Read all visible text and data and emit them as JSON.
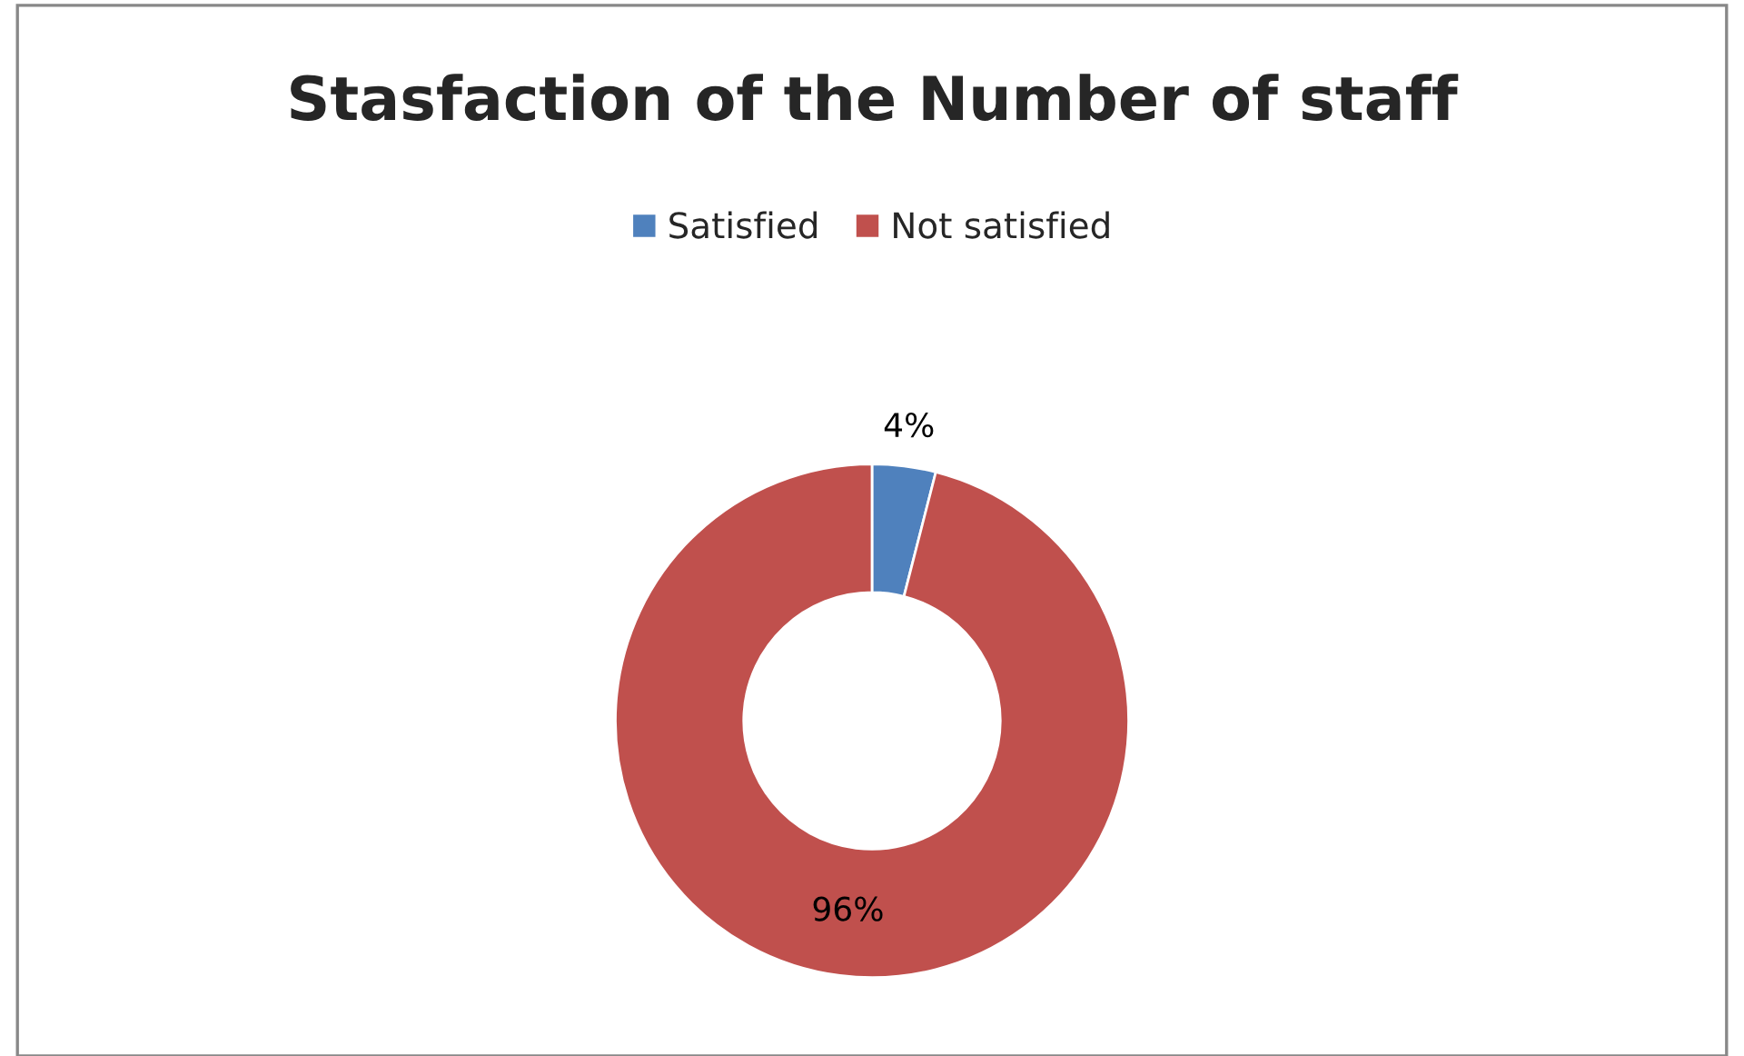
{
  "chart_data": {
    "type": "donut",
    "title": "Stasfaction of the Number of staff",
    "categories": [
      "Satisfied",
      "Not satisfied"
    ],
    "values": [
      4,
      96
    ],
    "value_labels": [
      "4%",
      "96%"
    ],
    "colors": [
      "#4f81bd",
      "#c0504d"
    ],
    "legend": "top"
  }
}
